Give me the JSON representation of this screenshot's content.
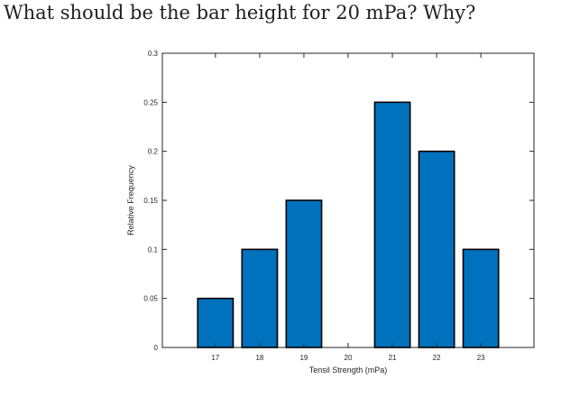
{
  "question": "What should be the bar height for 20 mPa? Why?",
  "chart_data": {
    "type": "bar",
    "categories": [
      "17",
      "18",
      "19",
      "20",
      "21",
      "22",
      "23"
    ],
    "x": [
      17,
      18,
      19,
      20,
      21,
      22,
      23
    ],
    "values": [
      0.05,
      0.1,
      0.15,
      0,
      0.25,
      0.2,
      0.1
    ],
    "xlabel": "Tensil Strength (mPa)",
    "ylabel": "Relative Frequency",
    "xlim": [
      15.8,
      24.2
    ],
    "ylim": [
      0,
      0.3
    ],
    "yticks": [
      0,
      0.05,
      0.1,
      0.15,
      0.2,
      0.25,
      0.3
    ],
    "ytick_labels": [
      "0",
      "0.05",
      "0.1",
      "0.15",
      "0.2",
      "0.25",
      "0.3"
    ],
    "bar_width": 0.8,
    "bar_color": "#0072bd",
    "bar_edge_color": "#000000",
    "grid": false,
    "box": true
  }
}
